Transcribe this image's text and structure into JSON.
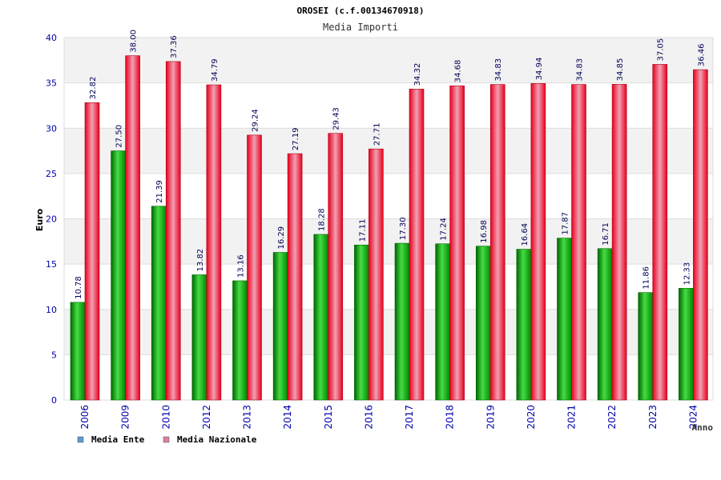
{
  "chart_data": {
    "type": "bar",
    "title": "OROSEI (c.f.00134670918)",
    "subtitle": "Media Importi",
    "xlabel": "Anno",
    "ylabel": "Euro",
    "ylim": [
      0,
      40
    ],
    "yticks": [
      0,
      5,
      10,
      15,
      20,
      25,
      30,
      35,
      40
    ],
    "grid": true,
    "legend_position": "bottom-left",
    "categories": [
      "2006",
      "2009",
      "2010",
      "2012",
      "2013",
      "2014",
      "2015",
      "2016",
      "2017",
      "2018",
      "2019",
      "2020",
      "2021",
      "2022",
      "2023",
      "2024"
    ],
    "series": [
      {
        "name": "Media Ente",
        "legend_color": "#5b9bd5",
        "bar_color": "#00aa00",
        "values": [
          10.78,
          27.5,
          21.39,
          13.82,
          13.16,
          16.29,
          18.28,
          17.11,
          17.3,
          17.24,
          16.98,
          16.64,
          17.87,
          16.71,
          11.86,
          12.33
        ],
        "labels": [
          "10.78",
          "27.50",
          "21.39",
          "13.82",
          "13.16",
          "16.29",
          "18.28",
          "17.11",
          "17.30",
          "17.24",
          "16.98",
          "16.64",
          "17.87",
          "16.71",
          "11.86",
          "12.33"
        ]
      },
      {
        "name": "Media Nazionale",
        "legend_color": "#d97fa5",
        "bar_color": "#e8001c",
        "values": [
          32.82,
          38.0,
          37.36,
          34.79,
          29.24,
          27.19,
          29.43,
          27.71,
          34.32,
          34.68,
          34.83,
          34.94,
          34.83,
          34.85,
          37.05,
          36.46
        ],
        "labels": [
          "32.82",
          "38.00",
          "37.36",
          "34.79",
          "29.24",
          "27.19",
          "29.43",
          "27.71",
          "34.32",
          "34.68",
          "34.83",
          "34.94",
          "34.83",
          "34.85",
          "37.05",
          "36.46"
        ]
      }
    ],
    "colors": {
      "grid_band": "#f2f2f2",
      "grid_line": "#dddddd",
      "axis_text": "#0000aa",
      "label_text": "#000055"
    }
  }
}
